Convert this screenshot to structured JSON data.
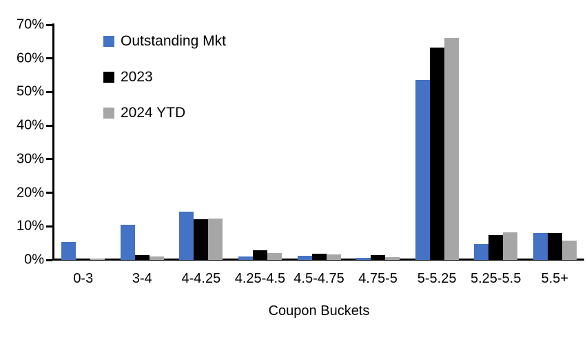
{
  "chart_data": {
    "type": "bar",
    "title": "",
    "xlabel": "Coupon Buckets",
    "ylabel": "",
    "ylim": [
      0,
      70
    ],
    "ytick_step": 10,
    "ytick_labels": [
      "0%",
      "10%",
      "20%",
      "30%",
      "40%",
      "50%",
      "60%",
      "70%"
    ],
    "grid": false,
    "legend_position": "top-left-inside",
    "background_color": "#ffffff",
    "axis_color": "#000000",
    "categories": [
      "0-3",
      "3-4",
      "4-4.25",
      "4.25-4.5",
      "4.5-4.75",
      "4.75-5",
      "5-5.25",
      "5.25-5.5",
      "5.5+"
    ],
    "series": [
      {
        "name": "Outstanding Mkt",
        "color": "#4472C4",
        "values": [
          5.4,
          10.5,
          14.4,
          1.0,
          1.2,
          0.6,
          53.5,
          4.7,
          8.0
        ]
      },
      {
        "name": "2023",
        "color": "#000000",
        "values": [
          0.2,
          1.5,
          12.1,
          2.8,
          1.9,
          1.4,
          63.3,
          7.3,
          8.0
        ]
      },
      {
        "name": "2024 YTD",
        "color": "#A6A6A6",
        "values": [
          0.5,
          1.1,
          12.4,
          2.0,
          1.7,
          0.8,
          66.2,
          8.2,
          5.8
        ]
      }
    ]
  }
}
